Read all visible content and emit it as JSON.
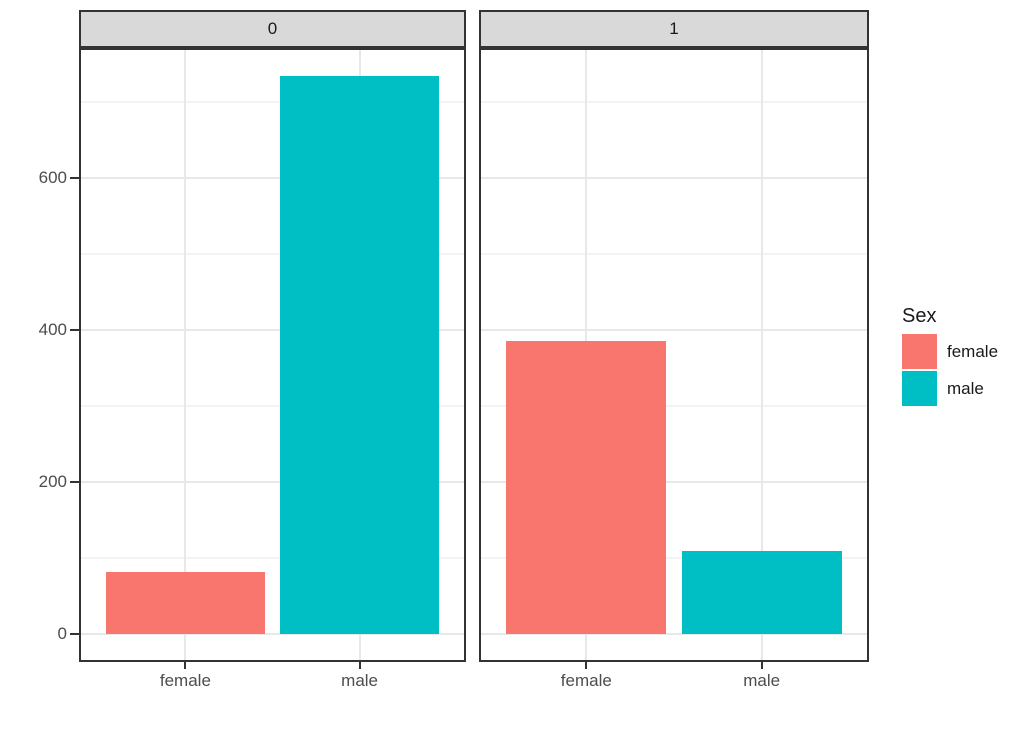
{
  "chart_data": {
    "type": "bar",
    "title": "",
    "xlabel": "",
    "ylabel": "",
    "faceted": true,
    "facet_labels": [
      "0",
      "1"
    ],
    "categories": [
      "female",
      "male"
    ],
    "facets": [
      {
        "label": "0",
        "values": [
          81,
          734
        ]
      },
      {
        "label": "1",
        "values": [
          385,
          109
        ]
      }
    ],
    "series_colors": [
      "#F8766D",
      "#00BFC4"
    ],
    "y_ticks": [
      0,
      200,
      400,
      600
    ],
    "y_tick_labels": [
      "0",
      "200",
      "400",
      "600"
    ],
    "y_minor_gridlines": [
      100,
      300,
      500,
      700
    ],
    "ylim": [
      0,
      775
    ],
    "grid": true,
    "legend": {
      "title": "Sex",
      "position": "right",
      "entries": [
        {
          "label": "female",
          "color": "#F8766D"
        },
        {
          "label": "male",
          "color": "#00BFC4"
        }
      ]
    }
  },
  "theme": {
    "background": "#FFFFFF",
    "strip_bg": "#D9D9D9",
    "border": "#333333",
    "grid_major": "#E8E8E8",
    "grid_minor": "#F3F3F3",
    "axis_text": "#4D4D4D",
    "strip_text": "#1A1A1A",
    "legend_text": "#1A1A1A",
    "tick_mark": "#333333"
  }
}
